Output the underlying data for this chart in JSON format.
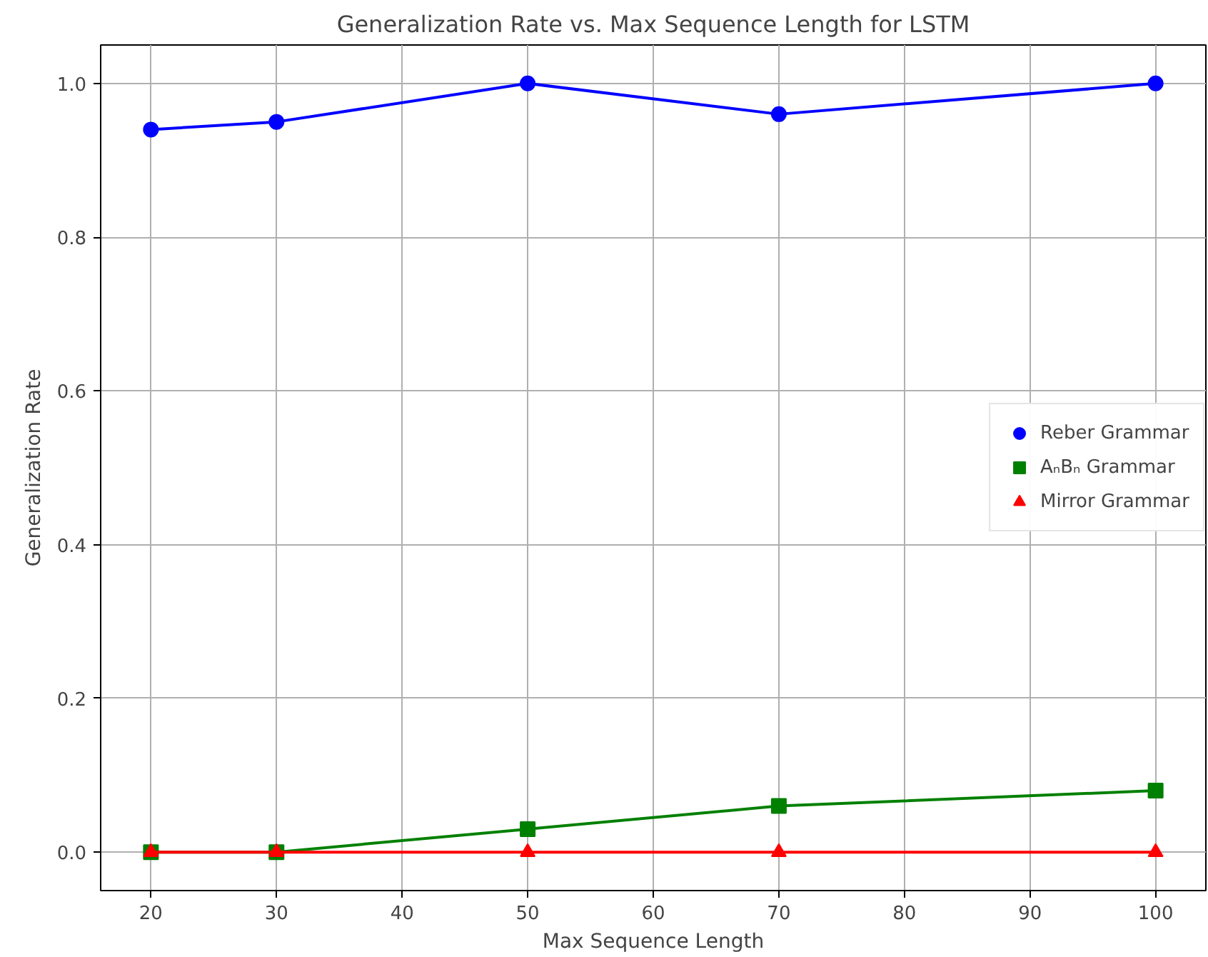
{
  "chart_data": {
    "type": "line",
    "title": "Generalization Rate vs. Max Sequence Length for LSTM",
    "xlabel": "Max Sequence Length",
    "ylabel": "Generalization Rate",
    "x": [
      20,
      30,
      50,
      70,
      100
    ],
    "series": [
      {
        "name": "Reber Grammar",
        "color": "#0000ff",
        "marker": "circle",
        "values": [
          0.94,
          0.95,
          1.0,
          0.96,
          1.0
        ]
      },
      {
        "name": "AₙBₙ Grammar",
        "color": "#008000",
        "marker": "square",
        "values": [
          0.0,
          0.0,
          0.03,
          0.06,
          0.08
        ]
      },
      {
        "name": "Mirror Grammar",
        "color": "#ff0000",
        "marker": "triangle",
        "values": [
          0.0,
          0.0,
          0.0,
          0.0,
          0.0
        ]
      }
    ],
    "xlim": [
      16,
      104
    ],
    "xticks": [
      20,
      30,
      40,
      50,
      60,
      70,
      80,
      90,
      100
    ],
    "ylim": [
      -0.05,
      1.05
    ],
    "yticks": [
      {
        "value": 0,
        "label": "0.0"
      },
      {
        "value": 0.2,
        "label": "0.2"
      },
      {
        "value": 0.4,
        "label": "0.4"
      },
      {
        "value": 0.6,
        "label": "0.6"
      },
      {
        "value": 0.8,
        "label": "0.8"
      },
      {
        "value": 1.0,
        "label": "1.0"
      }
    ],
    "grid": true,
    "legend": "center right",
    "line_style": "solid"
  }
}
